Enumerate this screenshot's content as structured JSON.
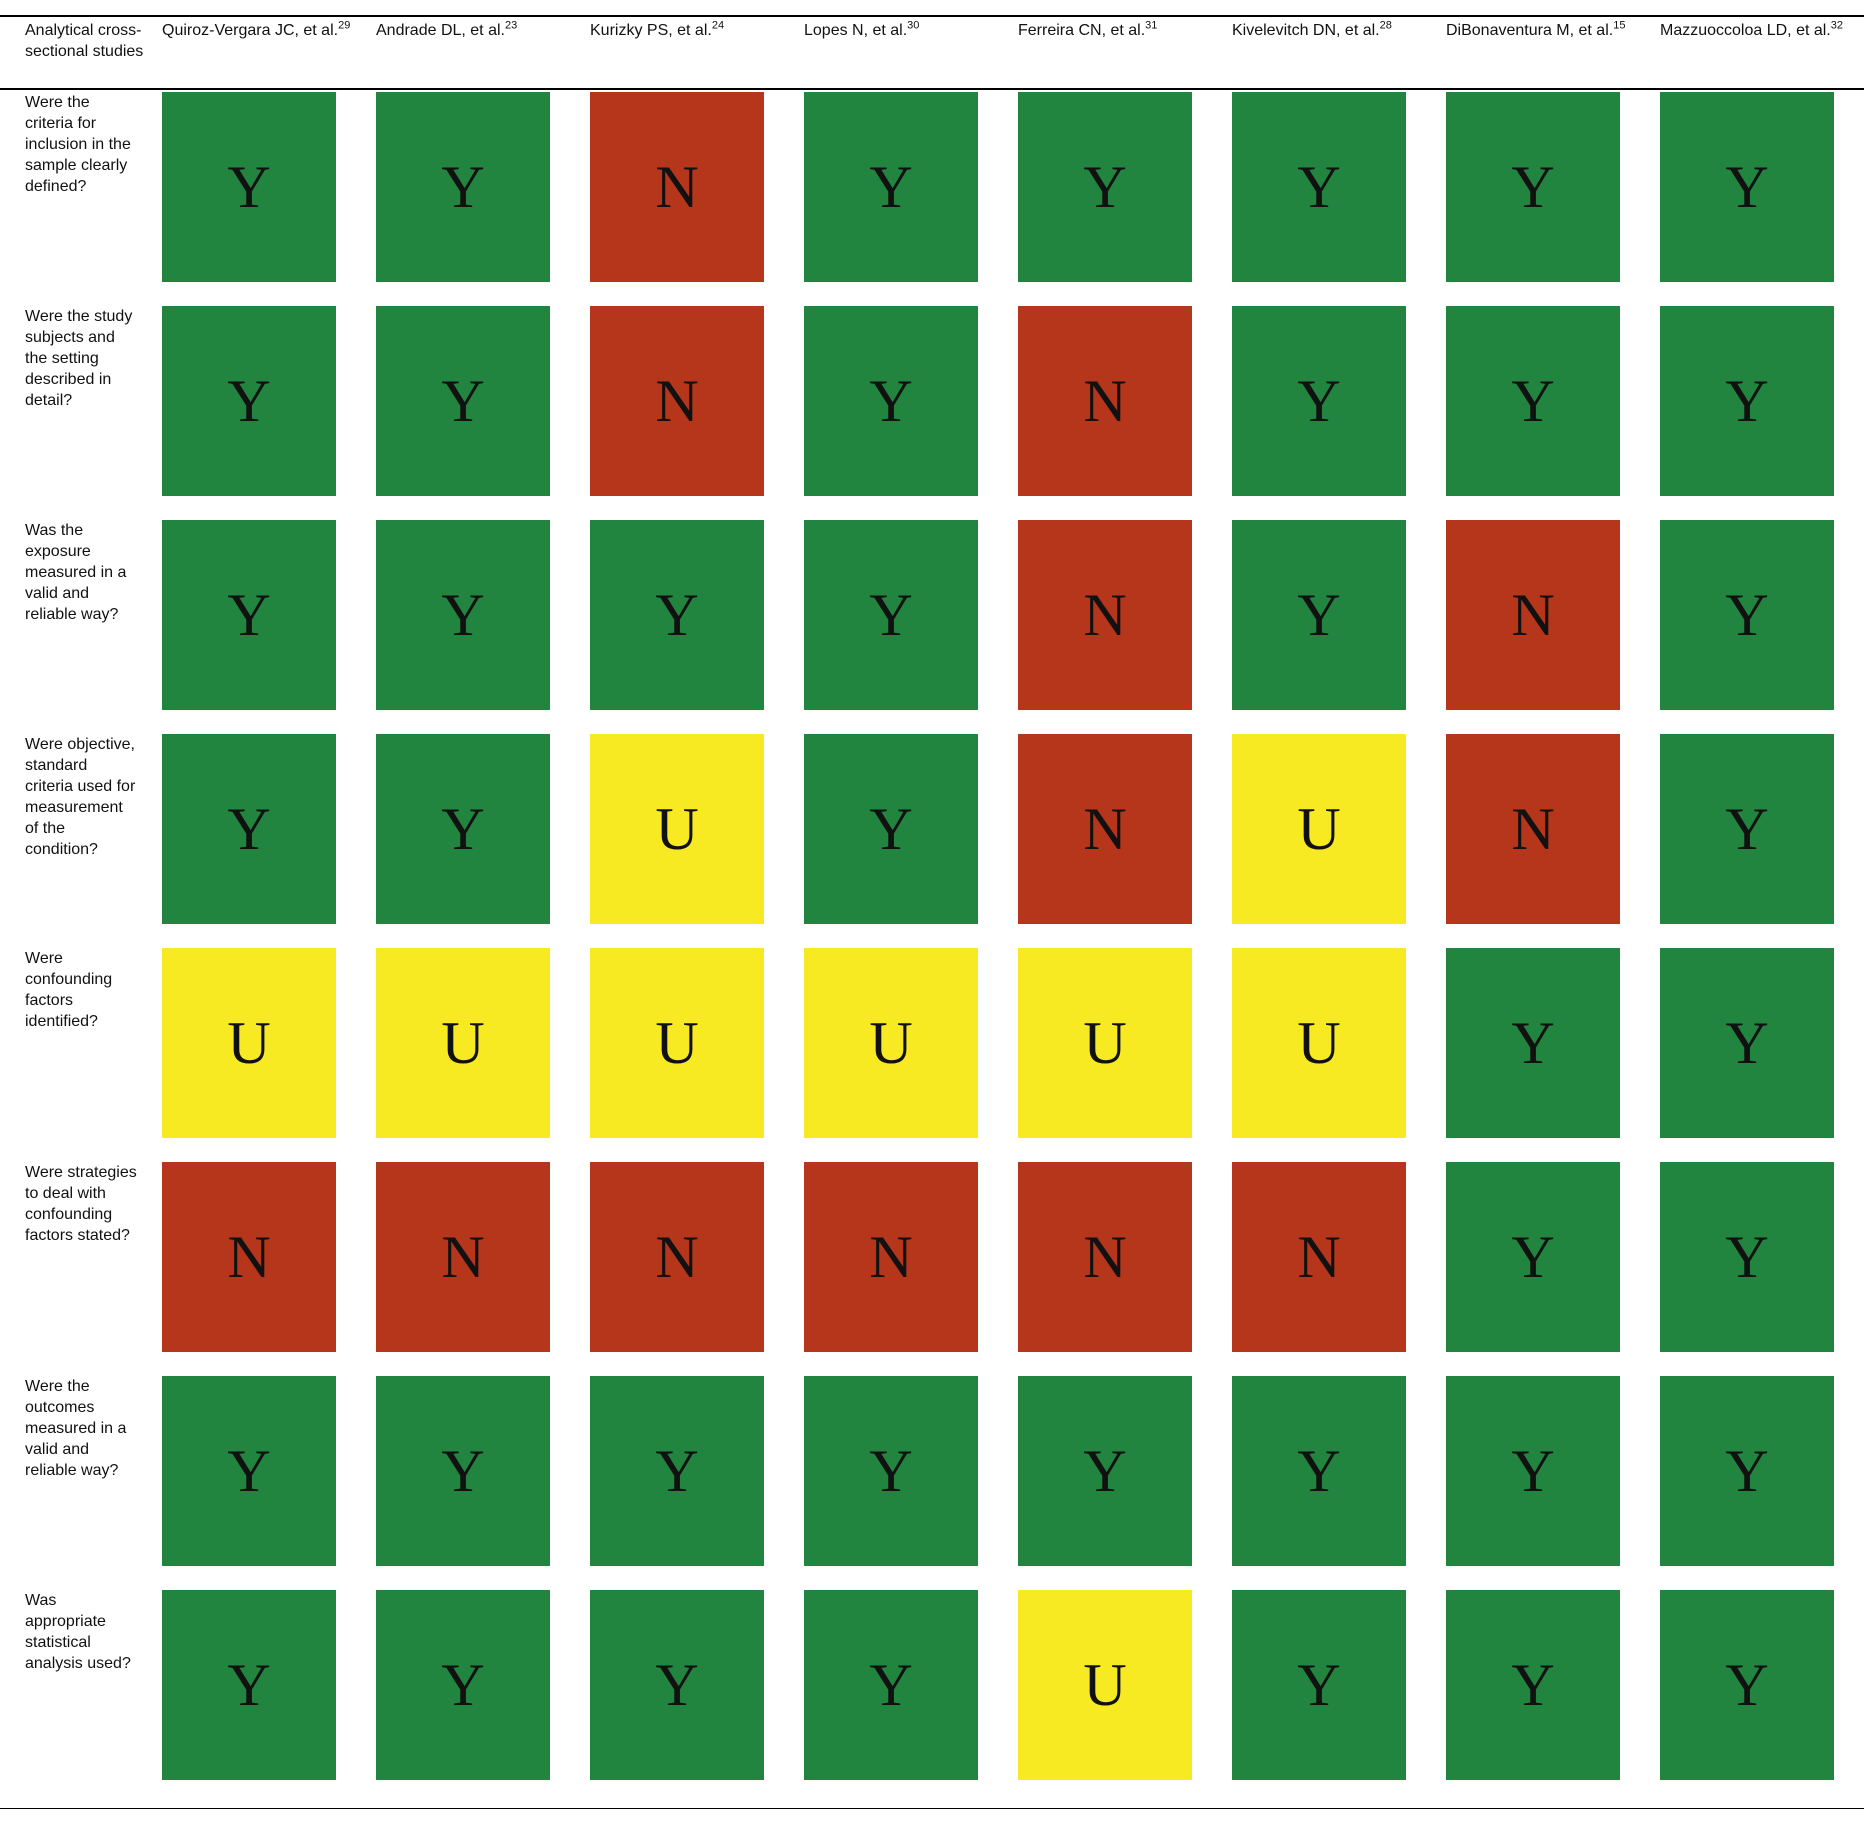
{
  "chart_data": {
    "type": "heatmap",
    "corner_label": "Analytical cross-sectional studies",
    "studies": [
      {
        "name": "Quiroz-Vergara JC, et al.",
        "ref": "29"
      },
      {
        "name": "Andrade DL, et al.",
        "ref": "23"
      },
      {
        "name": "Kurizky PS, et al.",
        "ref": "24"
      },
      {
        "name": "Lopes N, et al.",
        "ref": "30"
      },
      {
        "name": "Ferreira CN, et al.",
        "ref": "31"
      },
      {
        "name": "Kivelevitch DN, et al.",
        "ref": "28"
      },
      {
        "name": "DiBonaventura M, et al.",
        "ref": "15"
      },
      {
        "name": "Mazzuoccoloa LD, et al.",
        "ref": "32"
      }
    ],
    "questions": [
      "Were the criteria for inclusion in the sample clearly defined?",
      "Were the study subjects and the setting described in detail?",
      "Was the exposure measured in a valid and reliable way?",
      "Were objective, standard criteria used for measurement of the condition?",
      "Were confounding factors identified?",
      "Were strategies to deal with confounding factors stated?",
      "Were the outcomes measured in a valid and reliable way?",
      "Was appropriate statistical analysis used?"
    ],
    "ratings": [
      [
        "Y",
        "Y",
        "N",
        "Y",
        "Y",
        "Y",
        "Y",
        "Y"
      ],
      [
        "Y",
        "Y",
        "N",
        "Y",
        "N",
        "Y",
        "Y",
        "Y"
      ],
      [
        "Y",
        "Y",
        "Y",
        "Y",
        "N",
        "Y",
        "N",
        "Y"
      ],
      [
        "Y",
        "Y",
        "U",
        "Y",
        "N",
        "U",
        "N",
        "Y"
      ],
      [
        "U",
        "U",
        "U",
        "U",
        "U",
        "U",
        "Y",
        "Y"
      ],
      [
        "N",
        "N",
        "N",
        "N",
        "N",
        "N",
        "Y",
        "Y"
      ],
      [
        "Y",
        "Y",
        "Y",
        "Y",
        "Y",
        "Y",
        "Y",
        "Y"
      ],
      [
        "Y",
        "Y",
        "Y",
        "Y",
        "U",
        "Y",
        "Y",
        "Y"
      ]
    ],
    "colors": {
      "Y": "#21853f",
      "N": "#b5361a",
      "U": "#f8ea22"
    }
  }
}
